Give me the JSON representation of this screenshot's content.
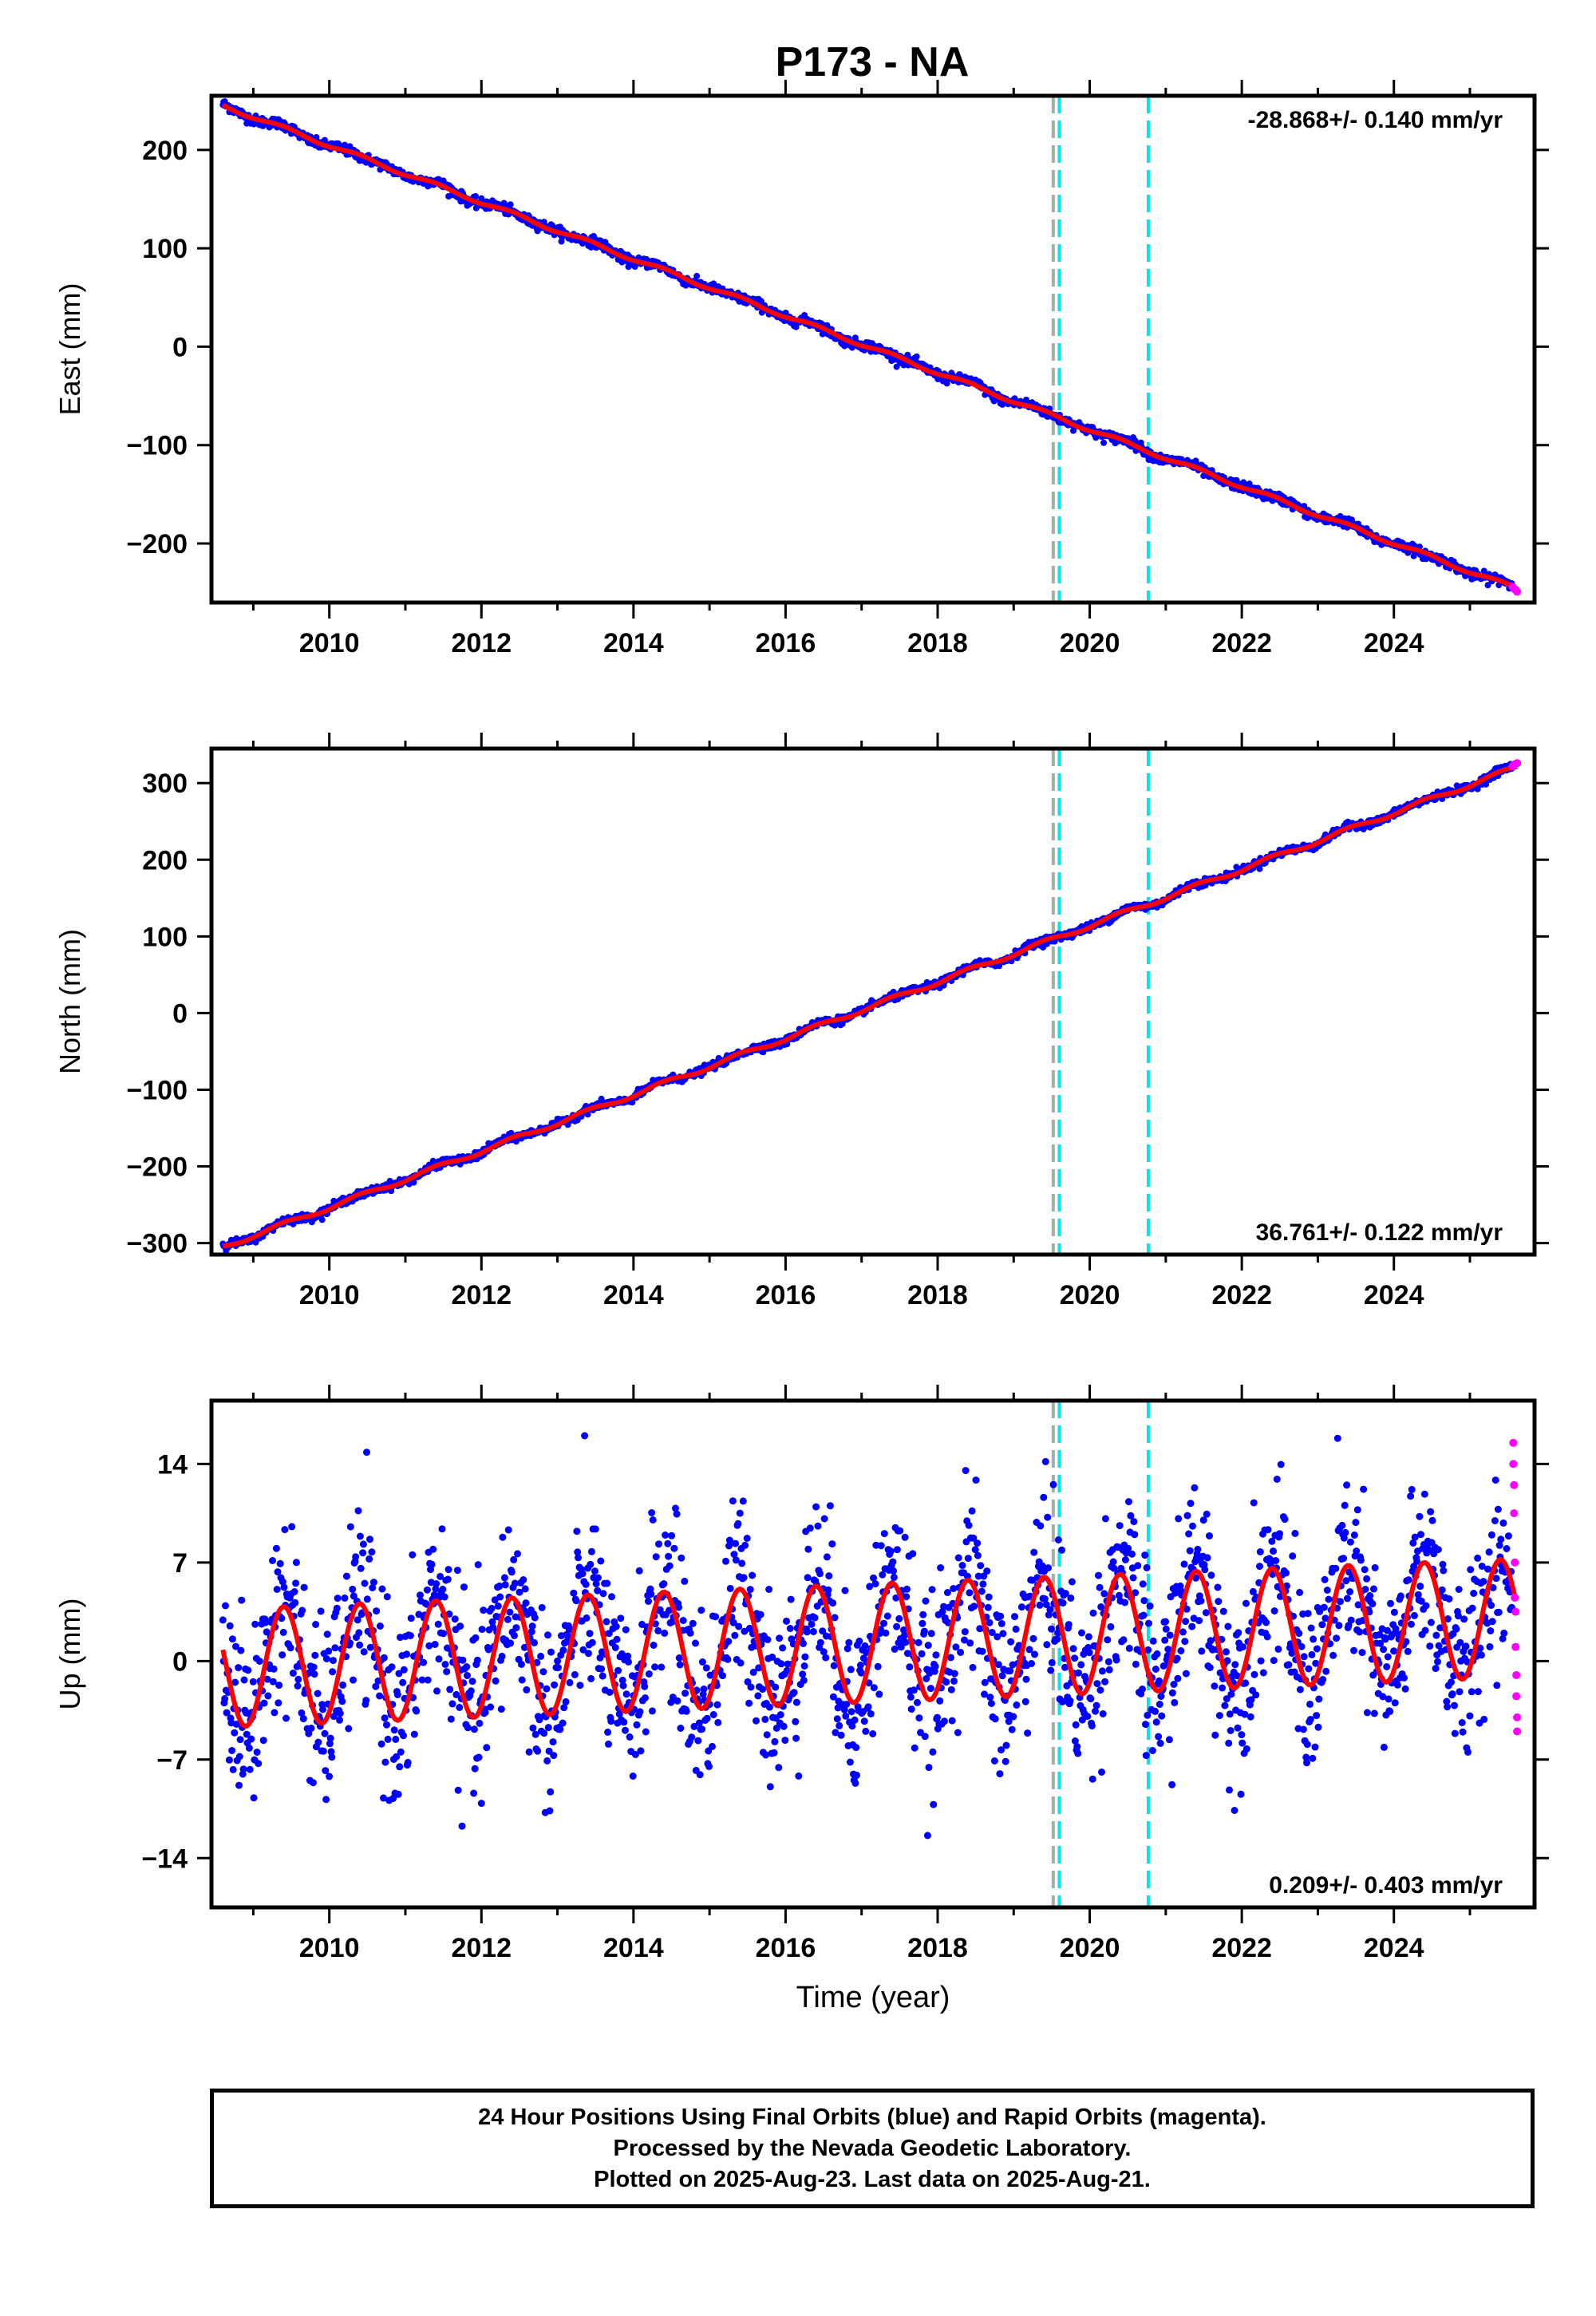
{
  "title": "P173 - NA",
  "colors": {
    "final_orbits": "#0000ff",
    "rapid_orbits": "#ff00ff",
    "model_fit": "#ff0000",
    "equipment_change": "#aaaaaa",
    "other_event": "#00e5ee"
  },
  "footer": {
    "line1": "24 Hour Positions Using Final Orbits (blue) and Rapid Orbits (magenta).",
    "line2": "Processed by the Nevada Geodetic Laboratory.",
    "line3": "Plotted on 2025-Aug-23. Last data on 2025-Aug-21."
  },
  "chart_data": [
    {
      "type": "scatter",
      "title": "",
      "xlabel": "",
      "ylabel": "East (mm)",
      "xlim": [
        2008.45,
        2025.85
      ],
      "ylim": [
        -260,
        255
      ],
      "xticks": [
        2010,
        2012,
        2014,
        2016,
        2018,
        2020,
        2022,
        2024
      ],
      "yticks": [
        -200,
        -100,
        0,
        100,
        200
      ],
      "rate_label": "-28.868+/- 0.140 mm/yr",
      "rate_position": "top-right",
      "vertical_lines": [
        {
          "x": 2019.52,
          "style": "dashed",
          "color_key": "equipment_change"
        },
        {
          "x": 2019.6,
          "style": "dashed",
          "color_key": "other_event"
        },
        {
          "x": 2020.77,
          "style": "dashed",
          "color_key": "other_event"
        }
      ],
      "series": [
        {
          "type": "scatter",
          "color_key": "final_orbits",
          "x_range": [
            2008.6,
            2025.55
          ],
          "start_value": 245,
          "rate": -28.868,
          "seasonal_amplitude": 2,
          "noise": 2.5
        },
        {
          "type": "line",
          "color_key": "model_fit",
          "x_range": [
            2008.6,
            2025.62
          ],
          "start_value": 245,
          "rate": -28.868,
          "seasonal_amplitude": 2
        },
        {
          "type": "scatter",
          "color_key": "rapid_orbits",
          "x": [
            2025.56,
            2025.58,
            2025.6,
            2025.62
          ],
          "y": [
            -244,
            -246,
            -247,
            -249
          ]
        }
      ]
    },
    {
      "type": "scatter",
      "title": "",
      "xlabel": "",
      "ylabel": "North (mm)",
      "xlim": [
        2008.45,
        2025.85
      ],
      "ylim": [
        -315,
        345
      ],
      "xticks": [
        2010,
        2012,
        2014,
        2016,
        2018,
        2020,
        2022,
        2024
      ],
      "yticks": [
        -300,
        -200,
        -100,
        0,
        100,
        200,
        300
      ],
      "rate_label": "36.761+/- 0.122 mm/yr",
      "rate_position": "bottom-right",
      "vertical_lines": [
        {
          "x": 2019.52,
          "style": "dashed",
          "color_key": "equipment_change"
        },
        {
          "x": 2019.6,
          "style": "dashed",
          "color_key": "other_event"
        },
        {
          "x": 2020.77,
          "style": "dashed",
          "color_key": "other_event"
        }
      ],
      "series": [
        {
          "type": "scatter",
          "color_key": "final_orbits",
          "x_range": [
            2008.6,
            2025.55
          ],
          "start_value": -305,
          "rate": 36.761,
          "seasonal_amplitude": 3,
          "noise": 2.5
        },
        {
          "type": "line",
          "color_key": "model_fit",
          "x_range": [
            2008.6,
            2025.62
          ],
          "start_value": -305,
          "rate": 36.761,
          "seasonal_amplitude": 3
        },
        {
          "type": "scatter",
          "color_key": "rapid_orbits",
          "x": [
            2025.56,
            2025.58,
            2025.6,
            2025.62
          ],
          "y": [
            322,
            324,
            325,
            326
          ]
        }
      ]
    },
    {
      "type": "scatter",
      "title": "",
      "xlabel": "Time (year)",
      "ylabel": "Up (mm)",
      "xlim": [
        2008.45,
        2025.85
      ],
      "ylim": [
        -17.5,
        18.5
      ],
      "xticks": [
        2010,
        2012,
        2014,
        2016,
        2018,
        2020,
        2022,
        2024
      ],
      "yticks": [
        -14,
        -7,
        0,
        7,
        14
      ],
      "rate_label": "0.209+/- 0.403 mm/yr",
      "rate_position": "bottom-right",
      "vertical_lines": [
        {
          "x": 2019.52,
          "style": "dashed",
          "color_key": "equipment_change"
        },
        {
          "x": 2019.6,
          "style": "dashed",
          "color_key": "other_event"
        },
        {
          "x": 2020.77,
          "style": "dashed",
          "color_key": "other_event"
        }
      ],
      "series": [
        {
          "type": "scatter",
          "color_key": "final_orbits",
          "x_range": [
            2008.6,
            2025.55
          ],
          "start_value": -0.5,
          "rate": 0.209,
          "seasonal_amplitude": 4.2,
          "noise": 3.2
        },
        {
          "type": "line",
          "color_key": "model_fit",
          "x_range": [
            2008.6,
            2025.6
          ],
          "start_value": -0.5,
          "rate": 0.209,
          "seasonal_amplitude": 4.2
        },
        {
          "type": "scatter",
          "color_key": "rapid_orbits",
          "x": [
            2025.57,
            2025.57,
            2025.58,
            2025.58,
            2025.59,
            2025.59,
            2025.6,
            2025.6,
            2025.61,
            2025.61,
            2025.62,
            2025.62
          ],
          "y": [
            15.5,
            14,
            12.5,
            10.5,
            7,
            4.5,
            3.5,
            1,
            -1,
            -2.5,
            -4,
            -5
          ]
        }
      ]
    }
  ]
}
